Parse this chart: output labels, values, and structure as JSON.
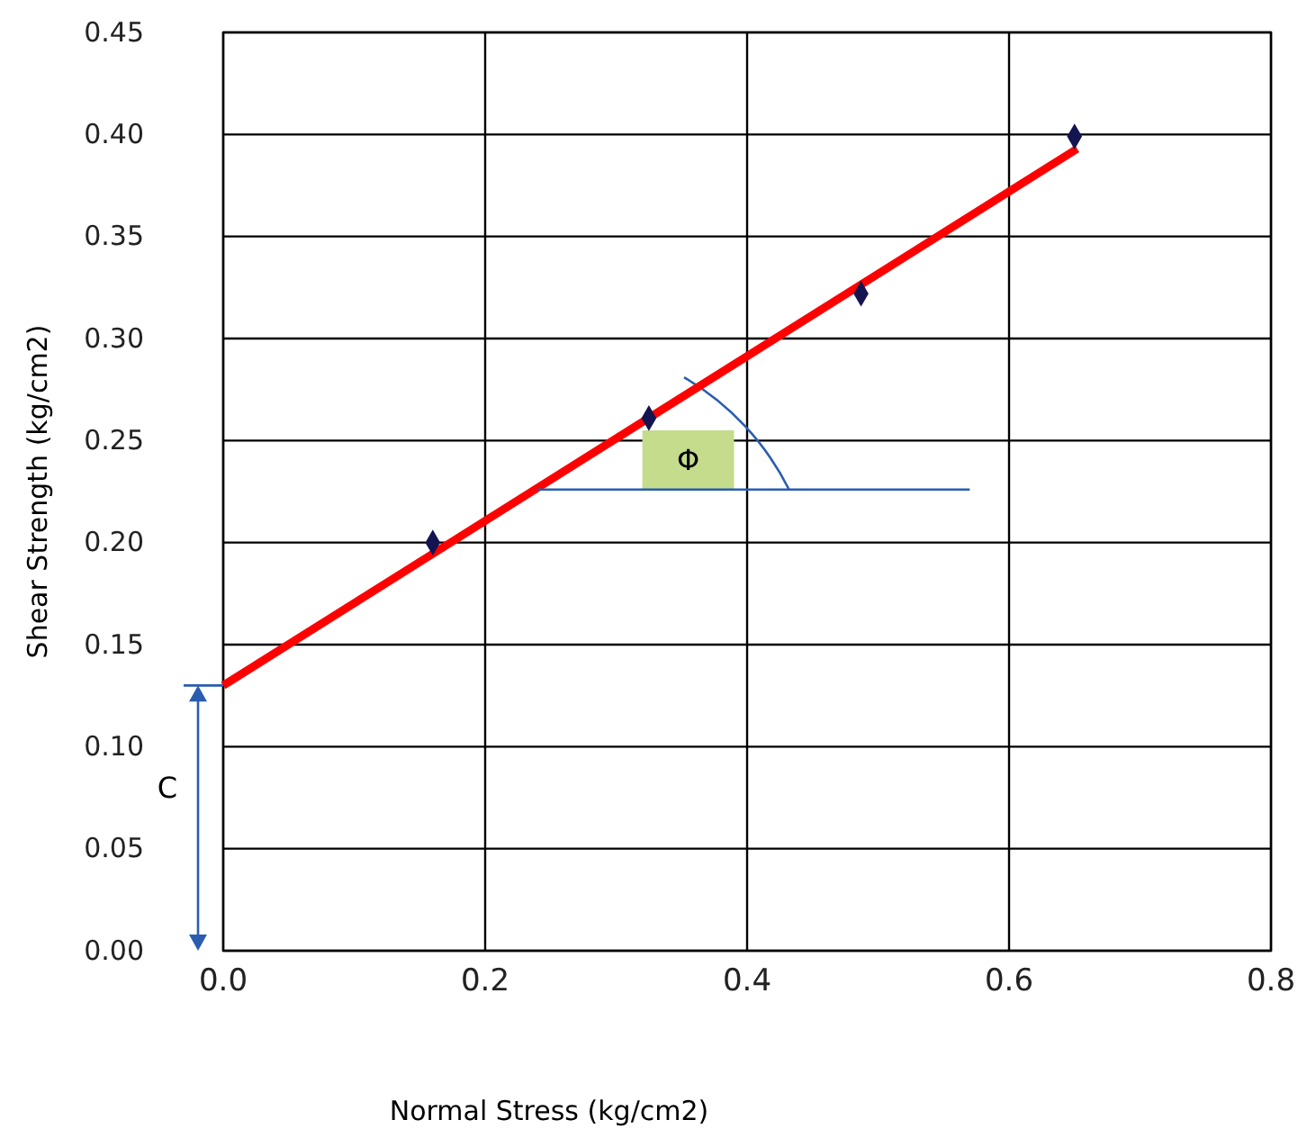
{
  "chart_data": {
    "type": "scatter",
    "xlabel": "Normal Stress (kg/cm2)",
    "ylabel": "Shear Strength (kg/cm2)",
    "xlim": [
      0,
      0.8
    ],
    "xticks": [
      {
        "value": 0,
        "label": "0.0"
      },
      {
        "value": 0.2,
        "label": "0.2"
      },
      {
        "value": 0.4,
        "label": "0.4"
      },
      {
        "value": 0.6,
        "label": "0.6"
      },
      {
        "value": 0.8,
        "label": "0.8"
      }
    ],
    "ylim": [
      0,
      0.45
    ],
    "yticks": [
      {
        "value": 0,
        "label": "0.00"
      },
      {
        "value": 0.05,
        "label": "0.05"
      },
      {
        "value": 0.1,
        "label": "0.10"
      },
      {
        "value": 0.15,
        "label": "0.15"
      },
      {
        "value": 0.2,
        "label": "0.20"
      },
      {
        "value": 0.25,
        "label": "0.25"
      },
      {
        "value": 0.3,
        "label": "0.30"
      },
      {
        "value": 0.35,
        "label": "0.35"
      },
      {
        "value": 0.4,
        "label": "0.40"
      },
      {
        "value": 0.45,
        "label": "0.45"
      }
    ],
    "grid": true,
    "series": [
      {
        "color": "#141450",
        "marker": "diamond",
        "x": [
          0.16,
          0.325,
          0.487,
          0.65
        ],
        "values": [
          0.2,
          0.261,
          0.322,
          0.399
        ]
      },
      {
        "type": "line",
        "color": "#ff0000",
        "marker": "none",
        "line_style": "solid",
        "x": [
          0,
          0.652
        ],
        "values": [
          0.13,
          0.393
        ]
      },
      {
        "type": "line",
        "color": "#2a5db0",
        "marker": "none",
        "line_style": "solid",
        "x": [
          0.24,
          0.57
        ],
        "values": [
          0.226,
          0.226
        ]
      }
    ],
    "annotations": [
      "Φ",
      "C"
    ]
  }
}
